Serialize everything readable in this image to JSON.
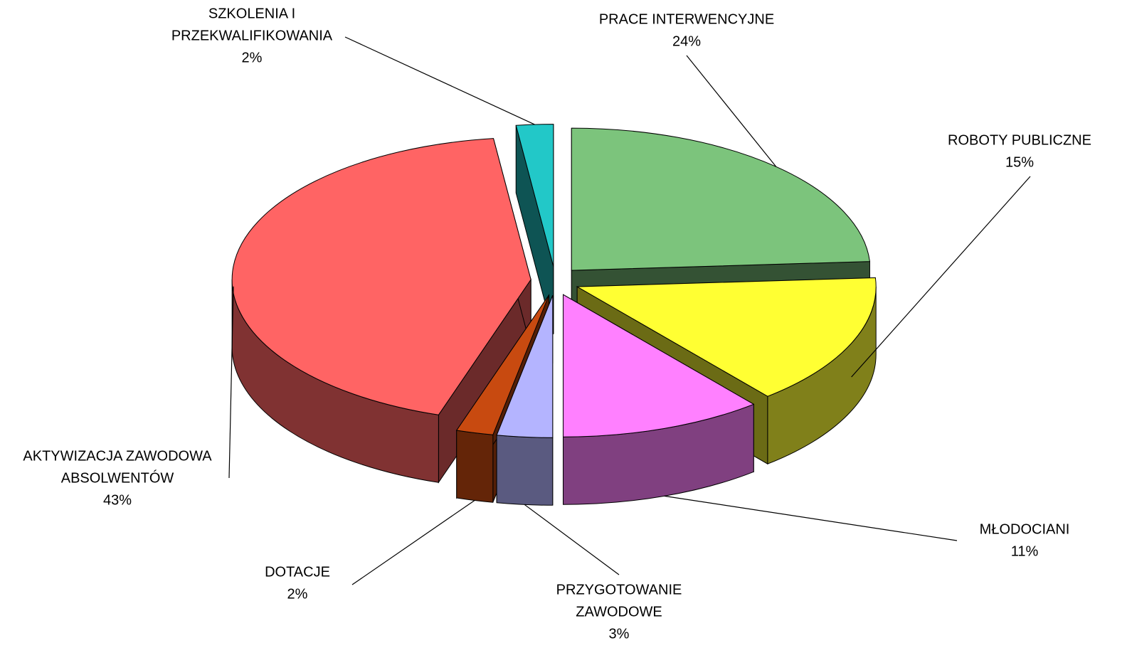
{
  "chart_data": {
    "type": "pie",
    "categories": [
      [
        "PRACE INTERWENCYJNE"
      ],
      [
        "ROBOTY PUBLICZNE"
      ],
      [
        "MŁODOCIANI"
      ],
      [
        "PRZYGOTOWANIE",
        "ZAWODOWE"
      ],
      [
        "DOTACJE"
      ],
      [
        "AKTYWIZACJA ZAWODOWA",
        "ABSOLWENTÓW"
      ],
      [
        "SZKOLENIA  I",
        "PRZEKWALIFIKOWANIA"
      ]
    ],
    "values": [
      24,
      15,
      11,
      3,
      2,
      43,
      2
    ],
    "value_labels": [
      "24%",
      "15%",
      "11%",
      "3%",
      "2%",
      "43%",
      "2%"
    ],
    "colors": [
      "#7cc47c",
      "#ffff33",
      "#ff80ff",
      "#b4b4ff",
      "#c84a10",
      "#ff6464",
      "#22c8c8"
    ]
  }
}
